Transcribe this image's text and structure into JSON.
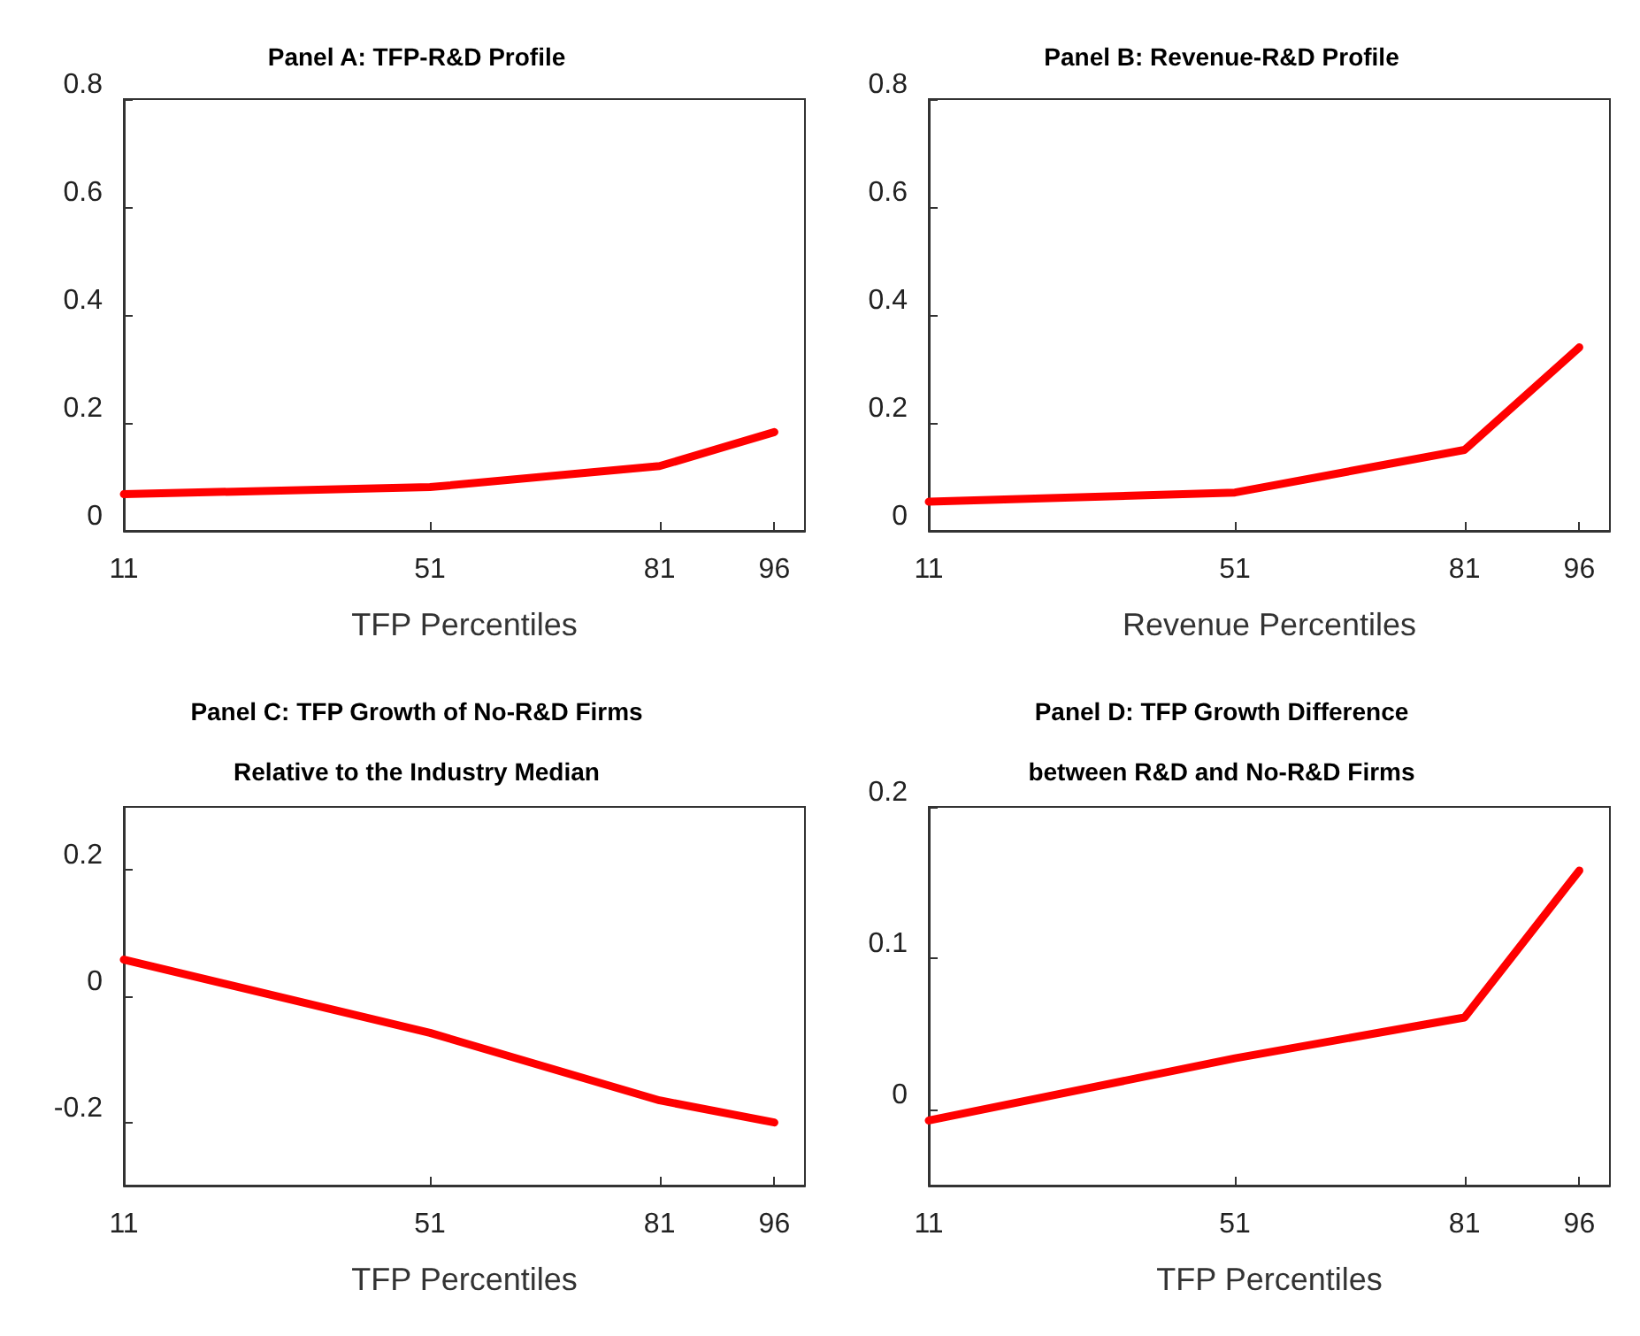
{
  "chart_data": [
    {
      "type": "line",
      "title": "Panel A: TFP-R&D Profile",
      "xlabel": "TFP Percentiles",
      "x": [
        11,
        51,
        81,
        96
      ],
      "xlim": [
        11,
        100
      ],
      "xticks": [
        11,
        51,
        81,
        96
      ],
      "ylim": [
        0,
        0.8
      ],
      "yticks": [
        0,
        0.2,
        0.4,
        0.6,
        0.8
      ],
      "grid": false,
      "marker": "none",
      "line_style": "solid",
      "series": [
        {
          "color": "#ff0000",
          "values": [
            0.068,
            0.081,
            0.12,
            0.183
          ]
        }
      ]
    },
    {
      "type": "line",
      "title": "Panel B: Revenue-R&D Profile",
      "xlabel": "Revenue Percentiles",
      "x": [
        11,
        51,
        81,
        96
      ],
      "xlim": [
        11,
        100
      ],
      "xticks": [
        11,
        51,
        81,
        96
      ],
      "ylim": [
        0,
        0.8
      ],
      "yticks": [
        0,
        0.2,
        0.4,
        0.6,
        0.8
      ],
      "grid": false,
      "marker": "none",
      "line_style": "solid",
      "series": [
        {
          "color": "#ff0000",
          "values": [
            0.054,
            0.071,
            0.15,
            0.34
          ]
        }
      ]
    },
    {
      "type": "line",
      "title": "Panel C: TFP Growth of No-R&D Firms\nRelative to the Industry Median",
      "xlabel": "TFP Percentiles",
      "x": [
        11,
        51,
        81,
        96
      ],
      "xlim": [
        11,
        100
      ],
      "xticks": [
        11,
        51,
        81,
        96
      ],
      "ylim": [
        -0.3,
        0.3
      ],
      "yticks": [
        -0.2,
        0,
        0.2
      ],
      "grid": false,
      "marker": "none",
      "line_style": "solid",
      "series": [
        {
          "color": "#ff0000",
          "values": [
            0.058,
            -0.058,
            -0.165,
            -0.2
          ]
        }
      ]
    },
    {
      "type": "line",
      "title": "Panel D: TFP Growth Difference\nbetween R&D and No-R&D Firms",
      "xlabel": "TFP Percentiles",
      "x": [
        11,
        51,
        81,
        96
      ],
      "xlim": [
        11,
        100
      ],
      "xticks": [
        11,
        51,
        81,
        96
      ],
      "ylim": [
        -0.05,
        0.2
      ],
      "yticks": [
        0,
        0.1,
        0.2
      ],
      "grid": false,
      "marker": "none",
      "line_style": "solid",
      "series": [
        {
          "color": "#ff0000",
          "values": [
            -0.007,
            0.034,
            0.061,
            0.158
          ]
        }
      ]
    }
  ]
}
